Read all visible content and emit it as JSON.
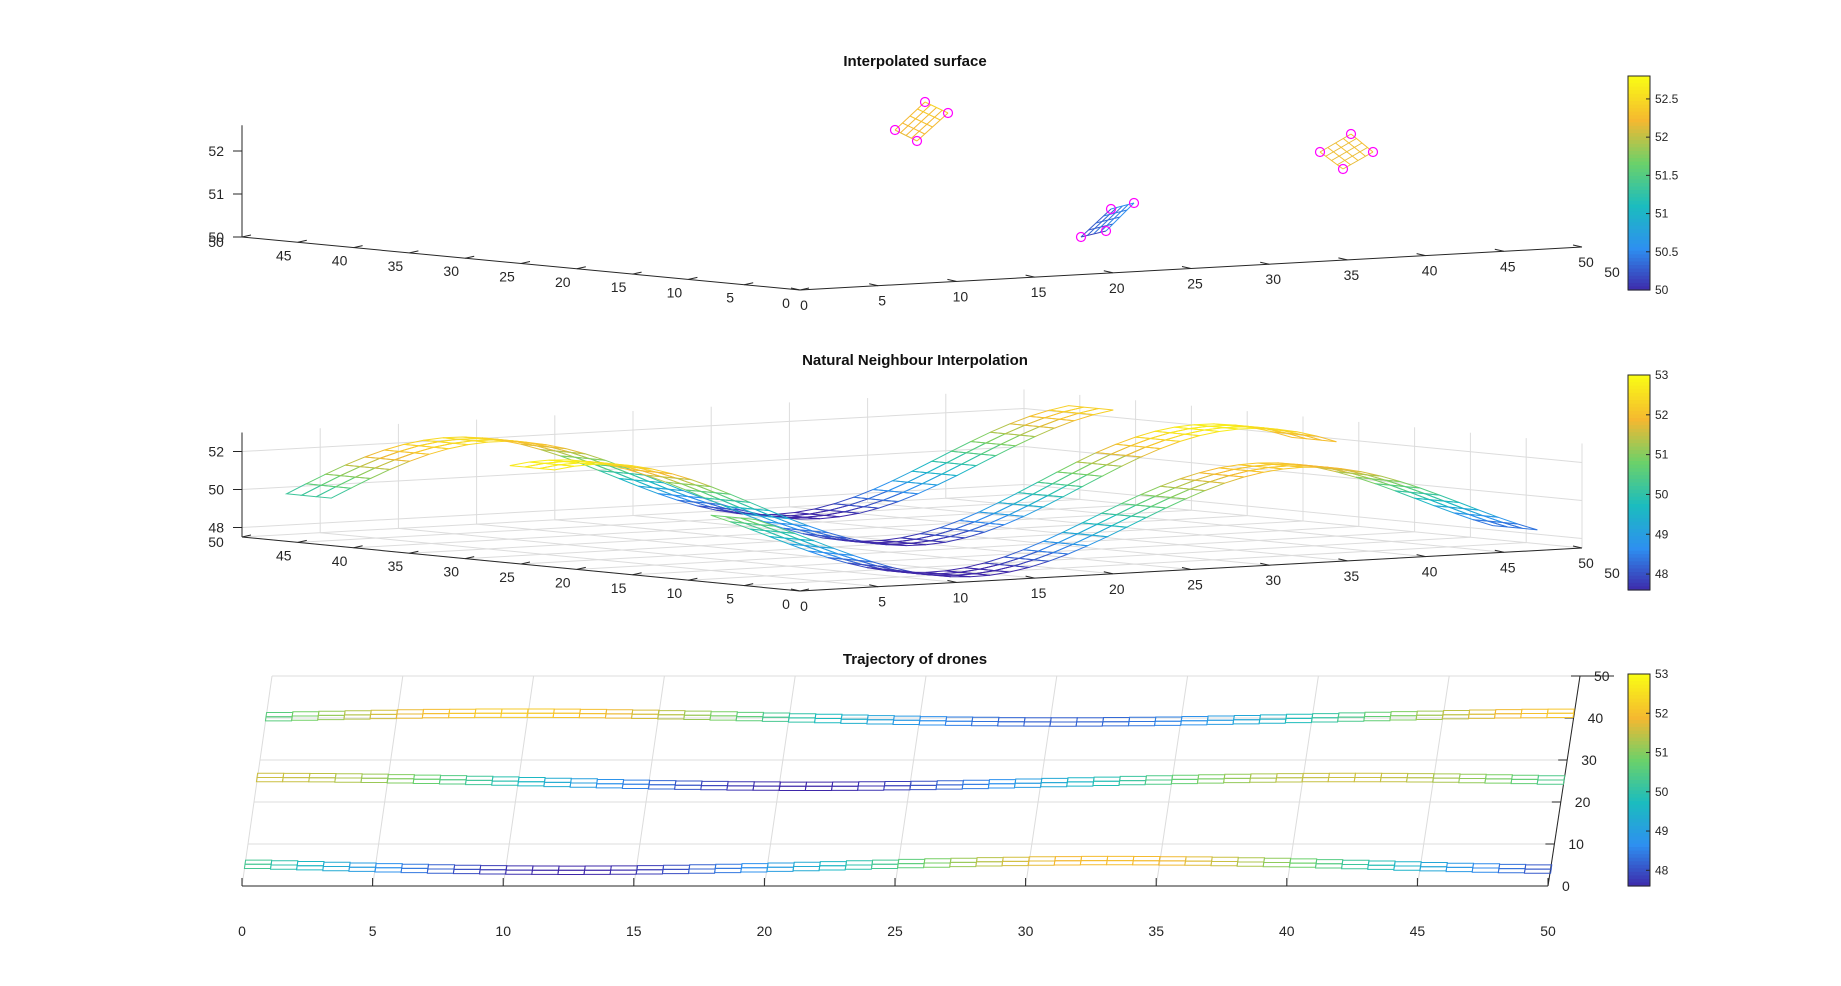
{
  "chart_data": [
    {
      "type": "surface",
      "title": "Interpolated surface",
      "x_ticks": [
        "0",
        "5",
        "10",
        "15",
        "20",
        "25",
        "30",
        "35",
        "40",
        "45",
        "50"
      ],
      "y_ticks": [
        "50",
        "45",
        "40",
        "35",
        "30",
        "25",
        "20",
        "15",
        "10",
        "5",
        "0"
      ],
      "z_ticks": [
        "50",
        "51",
        "52"
      ],
      "zlim": [
        50,
        52.6
      ],
      "grid": false,
      "colorbar": {
        "ticks": [
          "50",
          "50.5",
          "51",
          "51.5",
          "52",
          "52.5"
        ],
        "range": [
          50,
          52.8
        ]
      },
      "colormap": [
        "#3e26a8",
        "#2e8ff0",
        "#1bbcbf",
        "#6bd16a",
        "#f5b830",
        "#f9fb15"
      ],
      "marker_color": "#ff00ff"
    },
    {
      "type": "surface",
      "title": "Natural Neighbour Interpolation",
      "x_ticks": [
        "0",
        "5",
        "10",
        "15",
        "20",
        "25",
        "30",
        "35",
        "40",
        "45",
        "50"
      ],
      "y_ticks": [
        "50",
        "45",
        "40",
        "35",
        "30",
        "25",
        "20",
        "15",
        "10",
        "5",
        "0"
      ],
      "z_ticks": [
        "48",
        "50",
        "52"
      ],
      "zlim": [
        47.5,
        53
      ],
      "grid": true,
      "colorbar": {
        "ticks": [
          "48",
          "49",
          "50",
          "51",
          "52",
          "53"
        ],
        "range": [
          47.6,
          53
        ]
      }
    },
    {
      "type": "surface",
      "title": "Trajectory of drones",
      "x_ticks": [
        "0",
        "5",
        "10",
        "15",
        "20",
        "25",
        "30",
        "35",
        "40",
        "45",
        "50"
      ],
      "y_ticks": [
        "0",
        "10",
        "20",
        "30",
        "40",
        "50"
      ],
      "grid": true,
      "colorbar": {
        "ticks": [
          "48",
          "49",
          "50",
          "51",
          "52",
          "53"
        ],
        "range": [
          47.6,
          53
        ]
      }
    }
  ]
}
